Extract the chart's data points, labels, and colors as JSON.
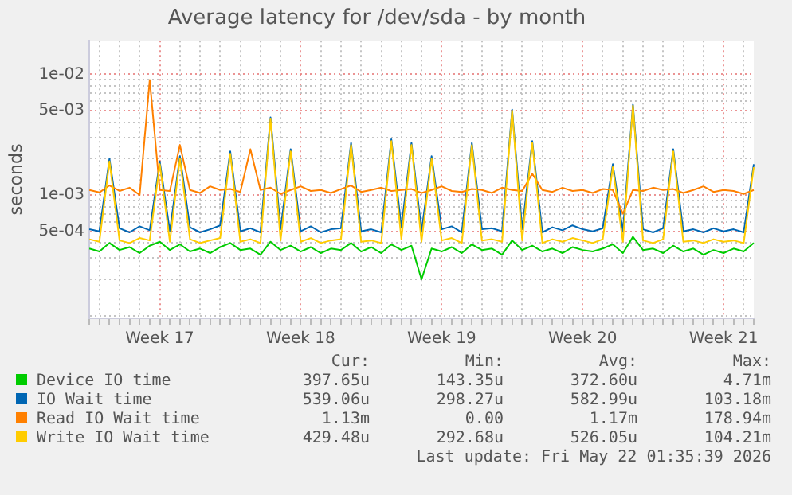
{
  "chart_data": {
    "type": "line",
    "title": "Average latency for /dev/sda - by month",
    "ylabel": "seconds",
    "log": "y",
    "grid": true,
    "legend": "bottom",
    "categories": [
      null,
      null,
      null,
      null,
      null,
      null,
      null,
      "Week 17",
      null,
      null,
      null,
      null,
      null,
      null,
      null,
      null,
      null,
      null,
      null,
      null,
      null,
      "Week 18",
      null,
      null,
      null,
      null,
      null,
      null,
      null,
      null,
      null,
      null,
      null,
      null,
      null,
      "Week 19",
      null,
      null,
      null,
      null,
      null,
      null,
      null,
      null,
      null,
      null,
      null,
      null,
      null,
      "Week 20",
      null,
      null,
      null,
      null,
      null,
      null,
      null,
      null,
      null,
      null,
      null,
      null,
      null,
      "Week 21",
      null,
      null,
      null
    ],
    "ylim": [
      9.5e-05,
      0.019
    ],
    "yticks": [
      {
        "value": 0.0001,
        "label": null
      },
      {
        "value": 0.0002,
        "label": null
      },
      {
        "value": 0.0003,
        "label": null
      },
      {
        "value": 0.0004,
        "label": null
      },
      {
        "value": 0.0005,
        "label": "5e-04"
      },
      {
        "value": 0.0006,
        "label": null
      },
      {
        "value": 0.0007,
        "label": null
      },
      {
        "value": 0.0008,
        "label": null
      },
      {
        "value": 0.0009,
        "label": null
      },
      {
        "value": 0.001,
        "label": "1e-03"
      },
      {
        "value": 0.002,
        "label": null
      },
      {
        "value": 0.003,
        "label": null
      },
      {
        "value": 0.004,
        "label": null
      },
      {
        "value": 0.005,
        "label": "5e-03"
      },
      {
        "value": 0.006,
        "label": null
      },
      {
        "value": 0.007,
        "label": null
      },
      {
        "value": 0.008,
        "label": null
      },
      {
        "value": 0.009,
        "label": null
      },
      {
        "value": 0.01,
        "label": "1e-02"
      }
    ],
    "series": [
      {
        "name": "Device IO time",
        "color": "#00cc00",
        "values": [
          0.00036,
          0.00034,
          0.0004,
          0.00035,
          0.00037,
          0.00033,
          0.00038,
          0.00041,
          0.00035,
          0.00039,
          0.00034,
          0.00036,
          0.00033,
          0.00037,
          0.0004,
          0.00035,
          0.00036,
          0.00032,
          0.00041,
          0.00035,
          0.00038,
          0.00034,
          0.00037,
          0.00033,
          0.00036,
          0.00035,
          0.0004,
          0.00034,
          0.00037,
          0.00033,
          0.00039,
          0.00035,
          0.00038,
          0.0002,
          0.00036,
          0.00034,
          0.00037,
          0.00033,
          0.00039,
          0.00035,
          0.00036,
          0.00032,
          0.00042,
          0.00035,
          0.00038,
          0.00034,
          0.00036,
          0.00033,
          0.00037,
          0.00035,
          0.00034,
          0.00036,
          0.00039,
          0.00033,
          0.00045,
          0.00035,
          0.00036,
          0.00033,
          0.00038,
          0.00034,
          0.00036,
          0.00032,
          0.00035,
          0.00033,
          0.00036,
          0.00034,
          0.0004
        ]
      },
      {
        "name": "IO Wait time",
        "color": "#0066b3",
        "values": [
          0.00052,
          0.0005,
          0.002,
          0.00053,
          0.00049,
          0.00055,
          0.00051,
          0.0019,
          0.0005,
          0.0021,
          0.00054,
          0.00049,
          0.00052,
          0.00056,
          0.0023,
          0.0005,
          0.00053,
          0.00049,
          0.0044,
          0.00052,
          0.0024,
          0.0005,
          0.00055,
          0.00049,
          0.00052,
          0.00053,
          0.0027,
          0.0005,
          0.00052,
          0.00049,
          0.0029,
          0.00054,
          0.0027,
          0.0005,
          0.0021,
          0.00052,
          0.00055,
          0.00049,
          0.0027,
          0.00052,
          0.00053,
          0.0005,
          0.0051,
          0.00052,
          0.0028,
          0.00049,
          0.00054,
          0.00051,
          0.00056,
          0.00052,
          0.0005,
          0.00053,
          0.0018,
          0.0005,
          0.0056,
          0.00052,
          0.00049,
          0.00053,
          0.0024,
          0.0005,
          0.00052,
          0.00049,
          0.00053,
          0.0005,
          0.00052,
          0.00049,
          0.0018
        ]
      },
      {
        "name": "Read IO Wait time",
        "color": "#ff8000",
        "values": [
          0.0011,
          0.00105,
          0.0012,
          0.00108,
          0.00115,
          0.001,
          0.009,
          0.0011,
          0.00108,
          0.0026,
          0.0011,
          0.00104,
          0.00118,
          0.0011,
          0.00112,
          0.00106,
          0.0024,
          0.0011,
          0.00115,
          0.00102,
          0.0011,
          0.00118,
          0.00108,
          0.0011,
          0.00104,
          0.00112,
          0.0012,
          0.00106,
          0.0011,
          0.00115,
          0.00108,
          0.0011,
          0.00112,
          0.00104,
          0.0011,
          0.00118,
          0.00108,
          0.00106,
          0.00112,
          0.0011,
          0.00104,
          0.00115,
          0.0011,
          0.00108,
          0.0015,
          0.0011,
          0.00106,
          0.00115,
          0.00108,
          0.0011,
          0.00104,
          0.00112,
          0.0011,
          0.0007,
          0.0011,
          0.00108,
          0.00115,
          0.0011,
          0.00112,
          0.00104,
          0.0011,
          0.00118,
          0.00106,
          0.0011,
          0.00108,
          0.00102,
          0.0011
        ]
      },
      {
        "name": "Write IO Wait time",
        "color": "#ffcc00",
        "values": [
          0.00043,
          0.00041,
          0.0019,
          0.00042,
          0.0004,
          0.00044,
          0.00042,
          0.0018,
          0.00041,
          0.002,
          0.00043,
          0.0004,
          0.00042,
          0.00044,
          0.0022,
          0.00041,
          0.00043,
          0.0004,
          0.0043,
          0.00042,
          0.0023,
          0.00041,
          0.00044,
          0.0004,
          0.00042,
          0.00043,
          0.0026,
          0.00041,
          0.00042,
          0.0004,
          0.0028,
          0.00043,
          0.0026,
          0.00041,
          0.002,
          0.00042,
          0.00044,
          0.0004,
          0.0026,
          0.00042,
          0.00043,
          0.00041,
          0.005,
          0.00042,
          0.0027,
          0.0004,
          0.00043,
          0.00041,
          0.00044,
          0.00042,
          0.0004,
          0.00043,
          0.0017,
          0.00041,
          0.0055,
          0.00042,
          0.0004,
          0.00043,
          0.0023,
          0.00041,
          0.00042,
          0.0004,
          0.00043,
          0.00041,
          0.00042,
          0.0004,
          0.0017
        ]
      }
    ],
    "annotations": [
      "Cur:",
      "Min:",
      "Avg:",
      "Max:",
      "397.65u",
      "143.35u",
      "372.60u",
      "4.71m",
      "539.06u",
      "298.27u",
      "582.99u",
      "103.18m",
      "1.13m",
      "0.00",
      "1.17m",
      "178.94m",
      "429.48u",
      "292.68u",
      "526.05u",
      "104.21m",
      "Last update: Fri May 22 01:35:39 2026"
    ]
  }
}
